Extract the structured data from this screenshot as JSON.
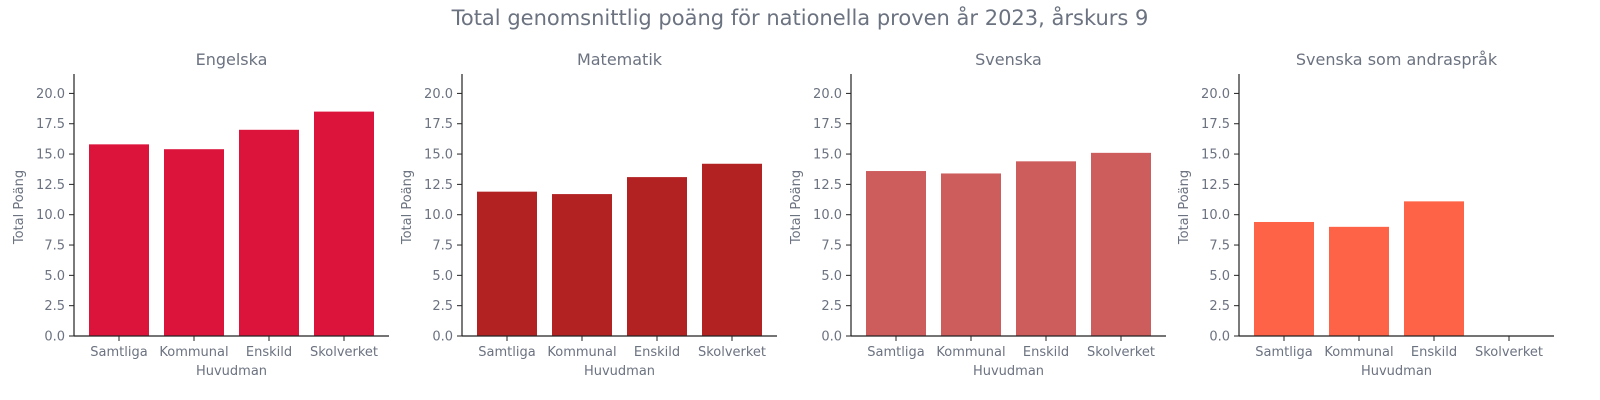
{
  "suptitle": "Total genomsnittlig poäng för nationella proven år 2023, årskurs 9",
  "chart_data": [
    {
      "type": "bar",
      "title": "Engelska",
      "xlabel": "Huvudman",
      "ylabel": "Total Poäng",
      "categories": [
        "Samtliga",
        "Kommunal",
        "Enskild",
        "Skolverket"
      ],
      "values": [
        15.8,
        15.4,
        17.0,
        18.5
      ],
      "ylim": [
        0,
        21.6
      ],
      "yticks": [
        "0.0",
        "2.5",
        "5.0",
        "7.5",
        "10.0",
        "12.5",
        "15.0",
        "17.5",
        "20.0"
      ],
      "color": "#dc143c"
    },
    {
      "type": "bar",
      "title": "Matematik",
      "xlabel": "Huvudman",
      "ylabel": "Total Poäng",
      "categories": [
        "Samtliga",
        "Kommunal",
        "Enskild",
        "Skolverket"
      ],
      "values": [
        11.9,
        11.7,
        13.1,
        14.2
      ],
      "ylim": [
        0,
        21.6
      ],
      "yticks": [
        "0.0",
        "2.5",
        "5.0",
        "7.5",
        "10.0",
        "12.5",
        "15.0",
        "17.5",
        "20.0"
      ],
      "color": "#b22222"
    },
    {
      "type": "bar",
      "title": "Svenska",
      "xlabel": "Huvudman",
      "ylabel": "Total Poäng",
      "categories": [
        "Samtliga",
        "Kommunal",
        "Enskild",
        "Skolverket"
      ],
      "values": [
        13.6,
        13.4,
        14.4,
        15.1
      ],
      "ylim": [
        0,
        21.6
      ],
      "yticks": [
        "0.0",
        "2.5",
        "5.0",
        "7.5",
        "10.0",
        "12.5",
        "15.0",
        "17.5",
        "20.0"
      ],
      "color": "#cd5c5c"
    },
    {
      "type": "bar",
      "title": "Svenska som andraspråk",
      "xlabel": "Huvudman",
      "ylabel": "Total Poäng",
      "categories": [
        "Samtliga",
        "Kommunal",
        "Enskild",
        "Skolverket"
      ],
      "values": [
        9.4,
        9.0,
        11.1,
        null
      ],
      "ylim": [
        0,
        21.6
      ],
      "yticks": [
        "0.0",
        "2.5",
        "5.0",
        "7.5",
        "10.0",
        "12.5",
        "15.0",
        "17.5",
        "20.0"
      ],
      "color": "#ff6347"
    }
  ]
}
